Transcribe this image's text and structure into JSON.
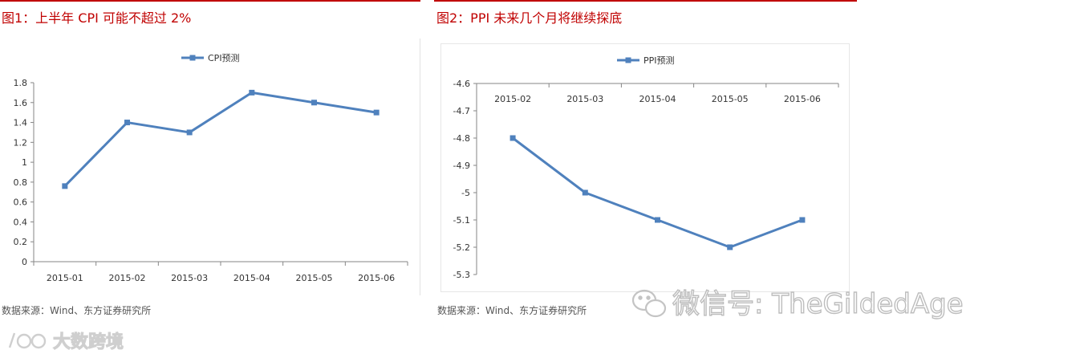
{
  "left_panel": {
    "title": "图1：上半年 CPI 可能不超过 2%",
    "source": "数据来源：Wind、东方证券研究所"
  },
  "right_panel": {
    "title": "图2：PPI 未来几个月将继续探底",
    "source": "数据来源：Wind、东方证券研究所"
  },
  "watermark": {
    "text": "微信号: TheGildedAge"
  },
  "logo": {
    "text": "大数跨境"
  },
  "colors": {
    "title_red": "#c00000",
    "series_blue": "#4f81bd",
    "axis_gray": "#868686"
  },
  "chart_data": [
    {
      "type": "line",
      "title": "",
      "categories": [
        "2015-01",
        "2015-02",
        "2015-03",
        "2015-04",
        "2015-05",
        "2015-06"
      ],
      "series": [
        {
          "name": "CPI预测",
          "values": [
            0.76,
            1.4,
            1.3,
            1.7,
            1.6,
            1.5
          ]
        }
      ],
      "ylim": [
        0,
        1.8
      ],
      "yticks": [
        "0",
        "0.2",
        "0.4",
        "0.6",
        "0.8",
        "1",
        "1.2",
        "1.4",
        "1.6",
        "1.8"
      ],
      "legend_position": "top-center",
      "grid": false
    },
    {
      "type": "line",
      "title": "",
      "categories": [
        "2015-02",
        "2015-03",
        "2015-04",
        "2015-05",
        "2015-06"
      ],
      "series": [
        {
          "name": "PPI预测",
          "values": [
            -4.8,
            -5.0,
            -5.1,
            -5.2,
            -5.1
          ]
        }
      ],
      "ylim": [
        -5.3,
        -4.6
      ],
      "yticks": [
        "-4.6",
        "-4.7",
        "-4.8",
        "-4.9",
        "-5",
        "-5.1",
        "-5.2",
        "-5.3"
      ],
      "x_axis_position": "top",
      "legend_position": "top-center",
      "grid": false
    }
  ]
}
